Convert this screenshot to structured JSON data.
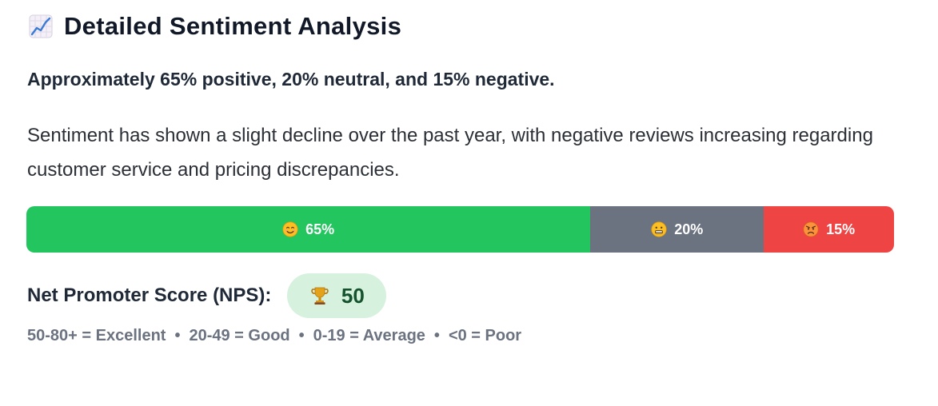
{
  "title": {
    "icon": "chart-increasing-icon",
    "text": "Detailed Sentiment Analysis"
  },
  "summary": "Approximately 65% positive, 20% neutral, and 15% negative.",
  "description": "Sentiment has shown a slight decline over the past year, with negative reviews increasing regarding customer service and pricing discrepancies.",
  "sentiment_bar": {
    "segments": [
      {
        "key": "positive",
        "percent": 65,
        "label": "65%",
        "icon": "smiling-face-icon",
        "color": "#22c55e"
      },
      {
        "key": "neutral",
        "percent": 20,
        "label": "20%",
        "icon": "grimacing-face-icon",
        "color": "#6b7280"
      },
      {
        "key": "negative",
        "percent": 15,
        "label": "15%",
        "icon": "angry-face-icon",
        "color": "#ef4444"
      }
    ]
  },
  "nps": {
    "label": "Net Promoter Score (NPS):",
    "icon": "trophy-icon",
    "value": "50",
    "pill_bg": "#d6f1dd",
    "value_color": "#14532d"
  },
  "legend": {
    "items": [
      "50-80+ = Excellent",
      "20-49 = Good",
      "0-19 = Average",
      "<0 = Poor"
    ],
    "separator": "•"
  }
}
